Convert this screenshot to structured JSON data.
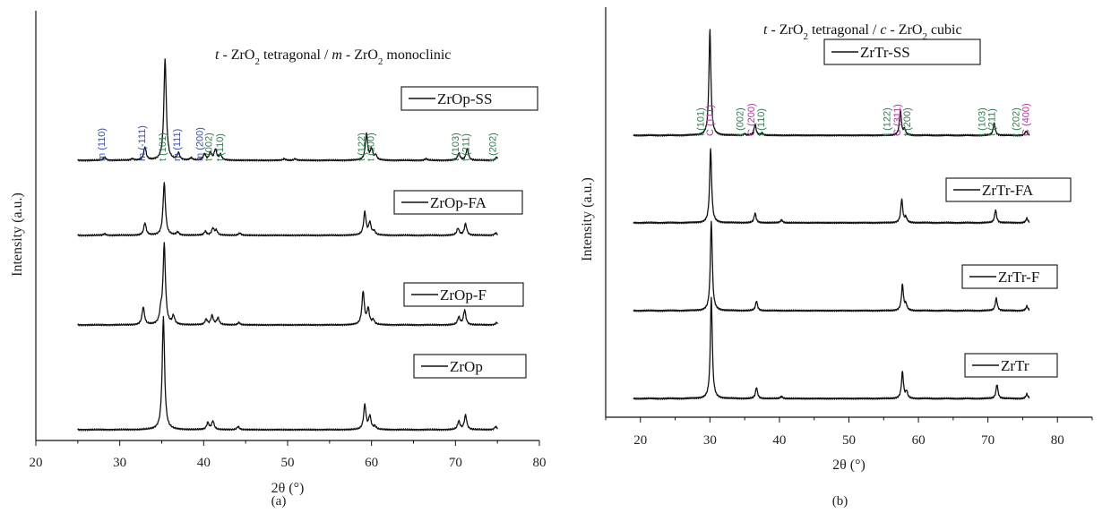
{
  "colors": {
    "t_label": "#2e7d4f",
    "m_label": "#3550a8",
    "c_label": "#b0379c",
    "line": "#111111"
  },
  "chart_data": [
    {
      "type": "line",
      "panel_label": "(a)",
      "title_parts": [
        "t",
        " - ZrO",
        "2",
        " tetragonal / ",
        "m",
        " - ZrO",
        "2",
        " monoclinic"
      ],
      "xlabel": "2θ (°)",
      "ylabel": "Intensity (a.u.)",
      "xlim": [
        20,
        80
      ],
      "xticks": [
        "20",
        "30",
        "40",
        "50",
        "60",
        "70",
        "80"
      ],
      "x_range": [
        25,
        75
      ],
      "grid": false,
      "series": [
        {
          "name": "ZrOp-SS",
          "baseline": 0.8,
          "peaks": [
            [
              28.2,
              0.4
            ],
            [
              31.5,
              0.2
            ],
            [
              33.0,
              1.7
            ],
            [
              35.4,
              13.2
            ],
            [
              37.0,
              0.9
            ],
            [
              38.5,
              0.3
            ],
            [
              40.1,
              0.8
            ],
            [
              40.8,
              1.0
            ],
            [
              41.4,
              1.4
            ],
            [
              42.0,
              0.7
            ],
            [
              49.6,
              0.2
            ],
            [
              50.9,
              0.2
            ],
            [
              59.4,
              3.4
            ],
            [
              60.0,
              1.4
            ],
            [
              60.5,
              0.6
            ],
            [
              66.5,
              0.2
            ],
            [
              70.4,
              0.9
            ],
            [
              71.4,
              1.5
            ],
            [
              74.9,
              0.4
            ]
          ]
        },
        {
          "name": "ZrOp-FA",
          "baseline": 0.6,
          "peaks": [
            [
              28.2,
              0.2
            ],
            [
              33.0,
              1.6
            ],
            [
              35.3,
              6.8
            ],
            [
              36.9,
              0.4
            ],
            [
              40.2,
              0.5
            ],
            [
              41.1,
              0.9
            ],
            [
              41.5,
              0.6
            ],
            [
              44.3,
              0.3
            ],
            [
              59.2,
              3.0
            ],
            [
              59.8,
              1.6
            ],
            [
              60.3,
              0.5
            ],
            [
              70.3,
              0.9
            ],
            [
              71.2,
              1.5
            ],
            [
              74.8,
              0.3
            ]
          ]
        },
        {
          "name": "ZrOp-F",
          "baseline": 0.7,
          "peaks": [
            [
              32.8,
              2.3
            ],
            [
              34.9,
              1.5
            ],
            [
              35.3,
              10.4
            ],
            [
              36.4,
              1.1
            ],
            [
              40.3,
              0.7
            ],
            [
              41.0,
              1.2
            ],
            [
              41.7,
              0.9
            ],
            [
              44.2,
              0.3
            ],
            [
              59.0,
              4.3
            ],
            [
              59.6,
              2.0
            ],
            [
              60.2,
              0.6
            ],
            [
              70.4,
              1.0
            ],
            [
              71.1,
              1.9
            ],
            [
              74.9,
              0.3
            ]
          ]
        },
        {
          "name": "ZrOp",
          "baseline": 0.7,
          "peaks": [
            [
              35.2,
              14.7
            ],
            [
              40.5,
              0.9
            ],
            [
              41.1,
              1.1
            ],
            [
              44.1,
              0.4
            ],
            [
              59.2,
              3.2
            ],
            [
              59.8,
              1.7
            ],
            [
              60.4,
              0.4
            ],
            [
              70.4,
              1.1
            ],
            [
              71.2,
              1.9
            ],
            [
              74.8,
              0.4
            ]
          ]
        }
      ],
      "peak_labels": [
        {
          "text": "m (110)",
          "x": 28.2,
          "color": "m_label"
        },
        {
          "text": "m (-111)",
          "x": 33.0,
          "color": "m_label"
        },
        {
          "text": "t (101)",
          "x": 35.5,
          "color": "t_label"
        },
        {
          "text": "m (111)",
          "x": 37.2,
          "color": "m_label"
        },
        {
          "text": "m (200)",
          "x": 39.9,
          "color": "m_label"
        },
        {
          "text": "t (002)",
          "x": 41.0,
          "color": "t_label"
        },
        {
          "text": "t (110)",
          "x": 42.3,
          "color": "t_label"
        },
        {
          "text": "t (122)",
          "x": 59.2,
          "color": "t_label"
        },
        {
          "text": "t (200)",
          "x": 60.3,
          "color": "t_label"
        },
        {
          "text": "t (103)",
          "x": 70.4,
          "color": "t_label"
        },
        {
          "text": "t (211)",
          "x": 71.6,
          "color": "t_label"
        },
        {
          "text": "t (202)",
          "x": 74.8,
          "color": "t_label"
        }
      ]
    },
    {
      "type": "line",
      "panel_label": "(b)",
      "title_parts": [
        "t",
        " - ZrO",
        "2",
        " tetragonal / ",
        "c",
        " - ZrO",
        "2",
        " cubic"
      ],
      "xlabel": "2θ (°)",
      "ylabel": "Intensity (a.u.)",
      "xlim": [
        15,
        85
      ],
      "xticks": [
        "20",
        "30",
        "40",
        "50",
        "60",
        "70",
        "80"
      ],
      "x_range": [
        19,
        76
      ],
      "grid": false,
      "series": [
        {
          "name": "ZrTr-SS",
          "baseline": 0.7,
          "peaks": [
            [
              30.0,
              14.3
            ],
            [
              35.0,
              0.2
            ],
            [
              36.5,
              1.5
            ],
            [
              37.5,
              0.3
            ],
            [
              57.4,
              3.3
            ],
            [
              58.0,
              0.8
            ],
            [
              70.9,
              1.7
            ],
            [
              75.5,
              0.6
            ]
          ]
        },
        {
          "name": "ZrTr-FA",
          "baseline": 0.5,
          "peaks": [
            [
              30.1,
              10.0
            ],
            [
              36.5,
              1.3
            ],
            [
              40.3,
              0.4
            ],
            [
              57.6,
              3.2
            ],
            [
              58.2,
              0.7
            ],
            [
              71.1,
              1.7
            ],
            [
              75.6,
              0.6
            ]
          ]
        },
        {
          "name": "ZrTr-F",
          "baseline": 0.6,
          "peaks": [
            [
              30.2,
              11.9
            ],
            [
              36.7,
              1.3
            ],
            [
              57.7,
              3.5
            ],
            [
              58.2,
              0.8
            ],
            [
              71.2,
              1.7
            ],
            [
              75.6,
              0.6
            ]
          ]
        },
        {
          "name": "ZrTr",
          "baseline": 0.7,
          "peaks": [
            [
              30.2,
              13.5
            ],
            [
              36.7,
              1.5
            ],
            [
              40.3,
              0.3
            ],
            [
              57.7,
              3.6
            ],
            [
              58.3,
              0.9
            ],
            [
              71.3,
              1.9
            ],
            [
              75.6,
              0.6
            ]
          ]
        }
      ],
      "peak_labels": [
        {
          "text": "t (101)",
          "x": 29.1,
          "color": "t_label"
        },
        {
          "text": "C (111)",
          "x": 30.5,
          "color": "c_label"
        },
        {
          "text": "t (002)",
          "x": 34.8,
          "color": "t_label"
        },
        {
          "text": "C (200)",
          "x": 36.4,
          "color": "c_label"
        },
        {
          "text": "t (110)",
          "x": 37.8,
          "color": "t_label"
        },
        {
          "text": "t (122)",
          "x": 55.9,
          "color": "t_label"
        },
        {
          "text": "C (311)",
          "x": 57.4,
          "color": "c_label"
        },
        {
          "text": "t (200)",
          "x": 58.8,
          "color": "t_label"
        },
        {
          "text": "t (103)",
          "x": 69.6,
          "color": "t_label"
        },
        {
          "text": "t (211)",
          "x": 71.0,
          "color": "t_label"
        },
        {
          "text": "t (202)",
          "x": 74.5,
          "color": "t_label"
        },
        {
          "text": "C (400)",
          "x": 75.9,
          "color": "c_label"
        }
      ]
    }
  ]
}
